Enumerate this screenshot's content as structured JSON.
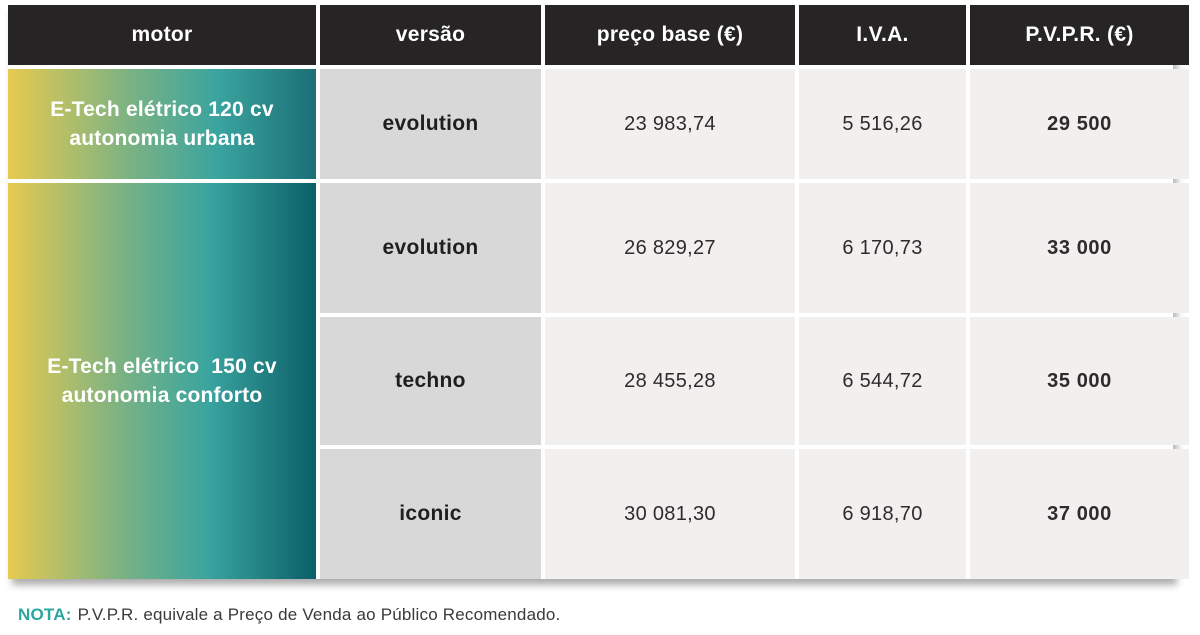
{
  "table": {
    "headers": [
      "motor",
      "versão",
      "preço base (€)",
      "I.V.A.",
      "P.V.P.R. (€)"
    ],
    "groups": [
      {
        "motor": {
          "line1": "E-Tech elétrico 120 cv",
          "line2": "autonomia urbana"
        },
        "rows": [
          {
            "versao": "evolution",
            "preco_base": "23 983,74",
            "iva": "5 516,26",
            "pvpr": "29 500"
          }
        ]
      },
      {
        "motor": {
          "line1": "E-Tech elétrico  150 cv",
          "line2": "autonomia conforto"
        },
        "rows": [
          {
            "versao": "evolution",
            "preco_base": "26 829,27",
            "iva": "6 170,73",
            "pvpr": "33 000"
          },
          {
            "versao": "techno",
            "preco_base": "28 455,28",
            "iva": "6 544,72",
            "pvpr": "35 000"
          },
          {
            "versao": "iconic",
            "preco_base": "30 081,30",
            "iva": "6 918,70",
            "pvpr": "37 000"
          }
        ]
      }
    ]
  },
  "note": {
    "label": "NOTA:",
    "text": "P.V.P.R. equivale a Preço de Venda ao Público Recomendado."
  },
  "colors": {
    "header_bg": "#272425",
    "header_text": "#ffffff",
    "version_cell_bg": "#d9d8d8",
    "value_cell_bg": "#f1f0ef",
    "motor_gradient_start": "#e6ca4f",
    "motor_gradient_mid": "#3aa49f",
    "motor_gradient_end": "#0b5f68",
    "note_accent": "#2aa79e",
    "text_dark": "#2d2b2c"
  }
}
